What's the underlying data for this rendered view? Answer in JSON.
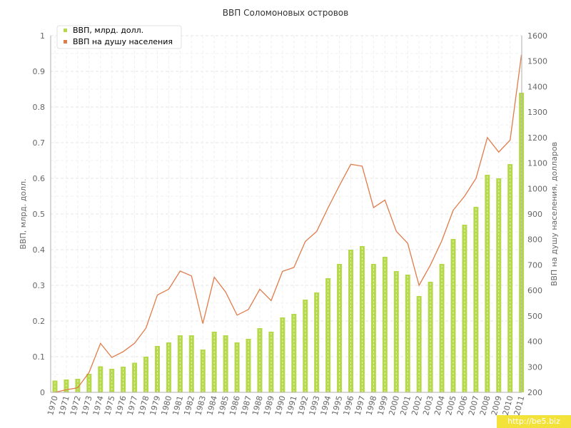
{
  "watermark": "http://be5.biz",
  "chart_data": {
    "type": "bar",
    "title": "ВВП Соломоновых островов",
    "categories": [
      "1970",
      "1971",
      "1972",
      "1973",
      "1974",
      "1975",
      "1976",
      "1977",
      "1978",
      "1979",
      "1980",
      "1981",
      "1982",
      "1983",
      "1984",
      "1985",
      "1986",
      "1987",
      "1988",
      "1989",
      "1990",
      "1991",
      "1992",
      "1993",
      "1994",
      "1995",
      "1996",
      "1997",
      "1998",
      "1999",
      "2000",
      "2001",
      "2002",
      "2003",
      "2004",
      "2005",
      "2006",
      "2007",
      "2008",
      "2009",
      "2010",
      "2011"
    ],
    "y_left": {
      "label": "ВВП, млрд. долл.",
      "lim": [
        0,
        1
      ],
      "ticks": [
        "0",
        "0.1",
        "0.2",
        "0.3",
        "0.4",
        "0.5",
        "0.6",
        "0.7",
        "0.8",
        "0.9",
        "1"
      ]
    },
    "y_right": {
      "label": "ВВП на душу населения, долларов",
      "lim": [
        200,
        1600
      ],
      "ticks": [
        "200",
        "300",
        "400",
        "500",
        "600",
        "700",
        "800",
        "900",
        "1000",
        "1100",
        "1200",
        "1300",
        "1400",
        "1500",
        "1600"
      ]
    },
    "grid": true,
    "legend_position": "top-left",
    "series": [
      {
        "name": "ВВП, млрд. долл.",
        "type": "bar",
        "axis": "left",
        "color": "#b5d94a",
        "values": [
          0.033,
          0.036,
          0.038,
          0.052,
          0.073,
          0.066,
          0.072,
          0.083,
          0.1,
          0.13,
          0.14,
          0.16,
          0.16,
          0.12,
          0.17,
          0.16,
          0.14,
          0.15,
          0.18,
          0.17,
          0.21,
          0.22,
          0.26,
          0.28,
          0.32,
          0.36,
          0.4,
          0.41,
          0.36,
          0.38,
          0.34,
          0.33,
          0.27,
          0.31,
          0.36,
          0.43,
          0.47,
          0.52,
          0.61,
          0.6,
          0.64,
          0.84
        ]
      },
      {
        "name": "ВВП на душу населения",
        "type": "line",
        "axis": "right",
        "color": "#e07b4a",
        "values": [
          200,
          210,
          218,
          278,
          392,
          337,
          360,
          393,
          452,
          582,
          605,
          676,
          657,
          470,
          652,
          594,
          503,
          525,
          605,
          560,
          675,
          690,
          792,
          832,
          924,
          1012,
          1095,
          1088,
          925,
          955,
          832,
          785,
          620,
          700,
          795,
          915,
          970,
          1040,
          1200,
          1143,
          1190,
          1525
        ]
      }
    ]
  }
}
